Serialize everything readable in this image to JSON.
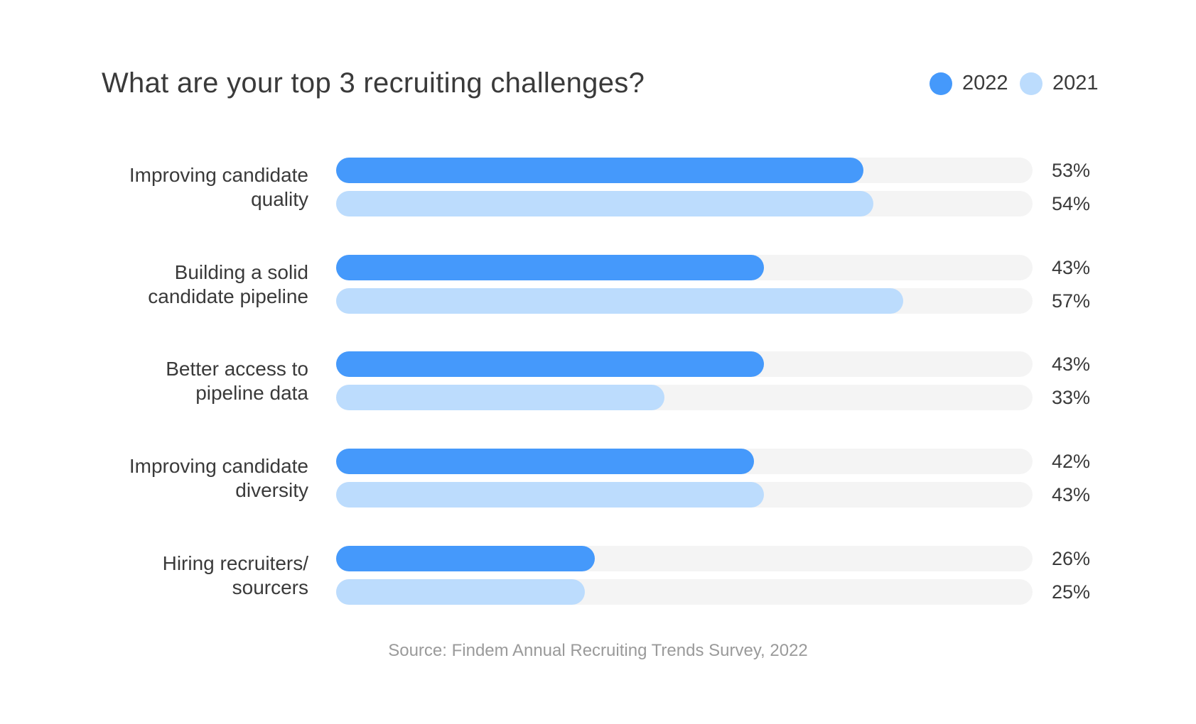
{
  "chart_data": {
    "type": "bar",
    "orientation": "horizontal",
    "title": "What are your top 3 recruiting challenges?",
    "categories": [
      "Improving candidate quality",
      "Building a solid candidate pipeline",
      "Better access to pipeline data",
      "Improving candidate diversity",
      "Hiring recruiters/ sourcers"
    ],
    "series": [
      {
        "name": "2022",
        "color": "#4599fb",
        "values": [
          53,
          43,
          43,
          42,
          26
        ],
        "labels": [
          "53%",
          "43%",
          "43%",
          "42%",
          "26%"
        ]
      },
      {
        "name": "2021",
        "color": "#bcdcfd",
        "values": [
          54,
          57,
          33,
          43,
          25
        ],
        "labels": [
          "54%",
          "57%",
          "33%",
          "43%",
          "25%"
        ]
      }
    ],
    "xlim": [
      0,
      70
    ],
    "track_color": "#f4f4f4",
    "legend": "top-right",
    "grid": false,
    "source": "Source: Findem Annual Recruiting Trends Survey, 2022"
  }
}
